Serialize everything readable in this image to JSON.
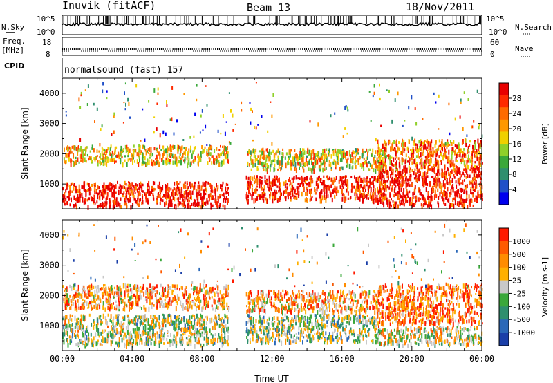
{
  "header": {
    "station": "Inuvik (fitACF)",
    "beam": "Beam 13",
    "date": "18/Nov/2011"
  },
  "strips": {
    "nsky_label": "N.Sky",
    "nsky_ticks": [
      "10^5",
      "10^0"
    ],
    "nsearch_label": "N.Search",
    "nsearch_ticks": [
      "10^5",
      "10^0"
    ],
    "freq_label": "Freq.",
    "freq_unit": "[MHz]",
    "freq_ticks": [
      "18",
      "8"
    ],
    "nave_label": "Nave",
    "nave_ticks": [
      "60",
      "0"
    ],
    "cpid_label": "CPID",
    "cpid_value": "normalsound (fast) 157"
  },
  "chart_data": [
    {
      "type": "heatmap",
      "panel": "power",
      "ylabel": "Slant Range [km]",
      "xlabel": "",
      "ylim": [
        180,
        4500
      ],
      "yticks": [
        "1000",
        "2000",
        "3000",
        "4000"
      ],
      "xlim": [
        "00:00",
        "24:00"
      ],
      "colorbar": {
        "label": "Power [dB]",
        "ticks": [
          "28",
          "24",
          "20",
          "16",
          "12",
          "8",
          "4"
        ],
        "colors": [
          "#0000ee",
          "#2050c8",
          "#2f8f6e",
          "#3aa83a",
          "#8fd02a",
          "#f0d000",
          "#ff9800",
          "#ff6a00",
          "#ff2a00",
          "#e80000"
        ]
      },
      "bands": [
        {
          "range_km": [
            300,
            1100
          ],
          "start_h": 0.0,
          "end_h": 9.5,
          "level": 0.95
        },
        {
          "range_km": [
            1700,
            2300
          ],
          "start_h": 0.0,
          "end_h": 9.5,
          "level": 0.6
        },
        {
          "range_km": [
            500,
            1300
          ],
          "start_h": 10.5,
          "end_h": 18.5,
          "level": 0.9
        },
        {
          "range_km": [
            1500,
            2200
          ],
          "start_h": 10.5,
          "end_h": 18.5,
          "level": 0.55
        },
        {
          "range_km": [
            300,
            1600
          ],
          "start_h": 18.0,
          "end_h": 24.0,
          "level": 0.95
        },
        {
          "range_km": [
            1600,
            2500
          ],
          "start_h": 18.0,
          "end_h": 24.0,
          "level": 0.75
        }
      ]
    },
    {
      "type": "heatmap",
      "panel": "velocity",
      "ylabel": "Slant Range [km]",
      "xlabel": "Time UT",
      "ylim": [
        180,
        4500
      ],
      "yticks": [
        "1000",
        "2000",
        "3000",
        "4000"
      ],
      "xticks": [
        "00:00",
        "04:00",
        "08:00",
        "12:00",
        "16:00",
        "20:00",
        "00:00"
      ],
      "xlim": [
        "00:00",
        "24:00"
      ],
      "colorbar": {
        "label": "Velocity [m s-1]",
        "ticks": [
          "1000",
          "500",
          "100",
          "25",
          "-25",
          "-100",
          "-500",
          "-1000"
        ],
        "colors": [
          "#1a3fa8",
          "#2a68b8",
          "#2e8f6e",
          "#3aa83a",
          "#c8c8c8",
          "#ffb000",
          "#ff8c00",
          "#ff5a00",
          "#ff1a00"
        ]
      },
      "bands": [
        {
          "range_km": [
            400,
            1400
          ],
          "start_h": 0.0,
          "end_h": 9.5,
          "level": 0.5
        },
        {
          "range_km": [
            1600,
            2400
          ],
          "start_h": 0.0,
          "end_h": 9.5,
          "level": 0.7
        },
        {
          "range_km": [
            500,
            1400
          ],
          "start_h": 10.5,
          "end_h": 18.0,
          "level": 0.45
        },
        {
          "range_km": [
            1500,
            2200
          ],
          "start_h": 10.5,
          "end_h": 18.0,
          "level": 0.7
        },
        {
          "range_km": [
            400,
            1000
          ],
          "start_h": 18.0,
          "end_h": 24.0,
          "level": 0.55
        },
        {
          "range_km": [
            1100,
            2400
          ],
          "start_h": 18.0,
          "end_h": 24.0,
          "level": 0.8
        }
      ]
    }
  ]
}
